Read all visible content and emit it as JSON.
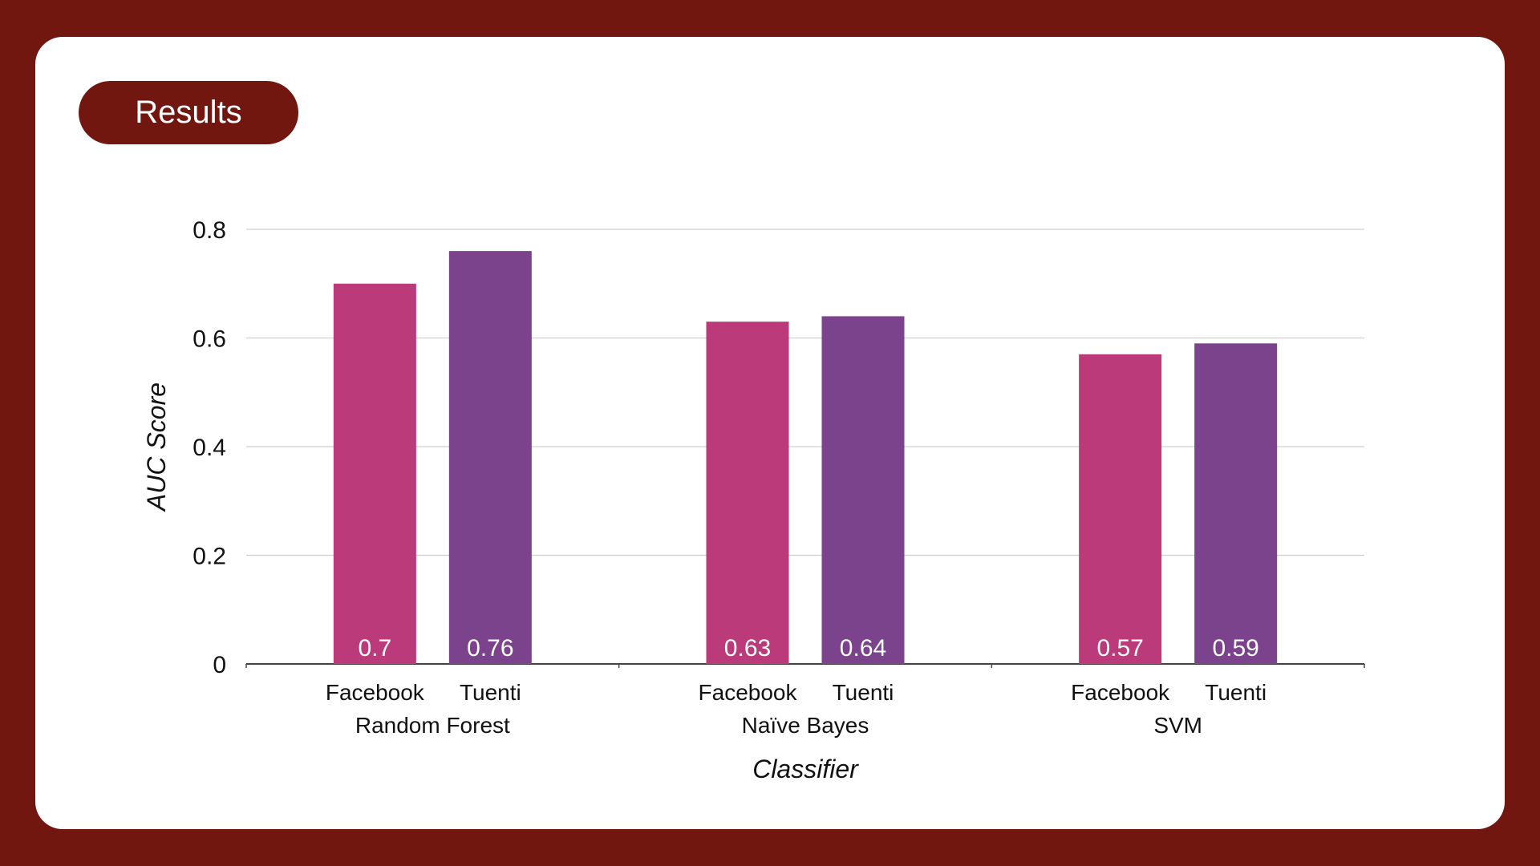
{
  "header": {
    "title": "Results"
  },
  "colors": {
    "background": "#721610",
    "facebook": "#bb3a79",
    "tuenti": "#7b438b",
    "grid": "#cfcfcf",
    "axis": "#444444"
  },
  "chart_data": {
    "type": "bar",
    "categories": [
      "Random Forest",
      "Naïve Bayes",
      "SVM"
    ],
    "sub_labels": [
      "Facebook",
      "Tuenti"
    ],
    "series": [
      {
        "name": "Facebook",
        "values": [
          0.7,
          0.63,
          0.57
        ],
        "labels": [
          "0.7",
          "0.63",
          "0.57"
        ]
      },
      {
        "name": "Tuenti",
        "values": [
          0.76,
          0.64,
          0.59
        ],
        "labels": [
          "0.76",
          "0.64",
          "0.59"
        ]
      }
    ],
    "xlabel": "Classifier",
    "ylabel": "AUC Score",
    "ylim": [
      0,
      0.8
    ],
    "yticks": [
      "0",
      "0.2",
      "0.4",
      "0.6",
      "0.8"
    ],
    "grid": true,
    "legend": "none"
  }
}
